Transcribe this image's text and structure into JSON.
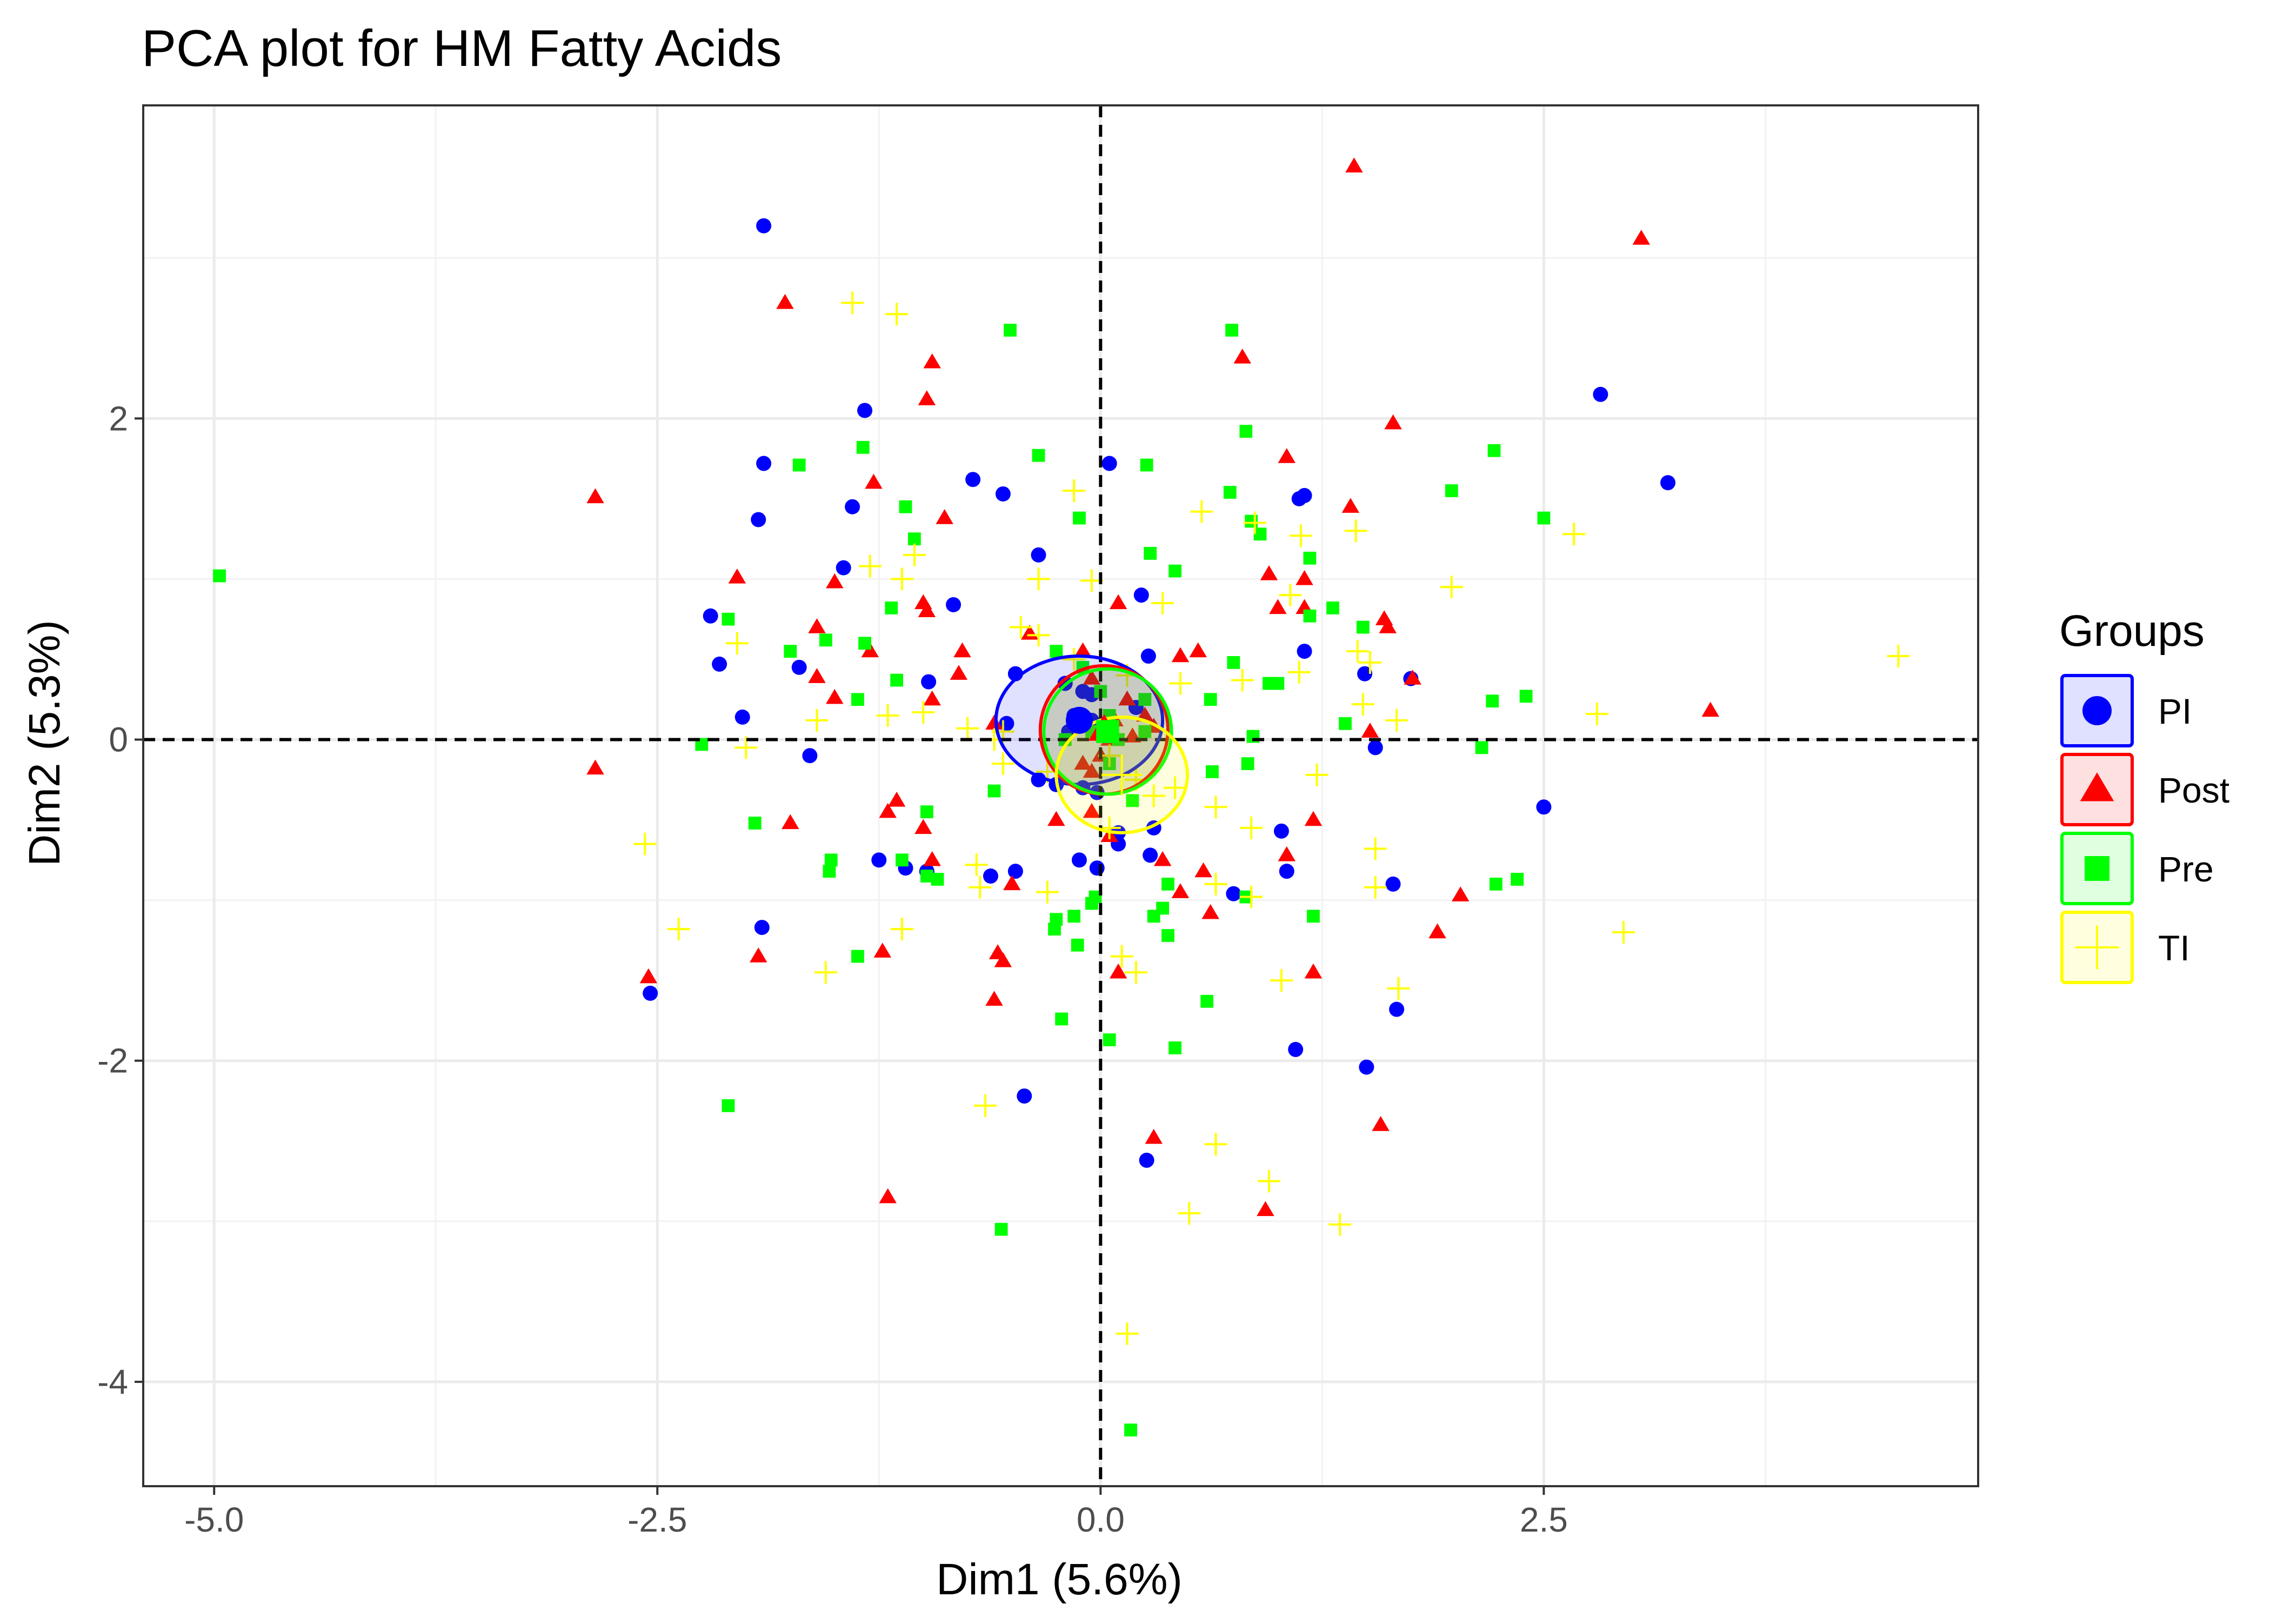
{
  "chart_data": {
    "type": "scatter",
    "title": "PCA plot for HM Fatty Acids",
    "xlabel": "Dim1 (5.6%)",
    "ylabel": "Dim2 (5.3%)",
    "xlim": [
      -5.4,
      4.95
    ],
    "ylim": [
      -4.65,
      3.95
    ],
    "x_ticks": [
      {
        "value": -5,
        "label": "-5.0"
      },
      {
        "value": -2.5,
        "label": "-2.5"
      },
      {
        "value": 0,
        "label": "0.0"
      },
      {
        "value": 2.5,
        "label": "2.5"
      }
    ],
    "y_ticks": [
      {
        "value": -4,
        "label": "-4"
      },
      {
        "value": -2,
        "label": "-2"
      },
      {
        "value": 0,
        "label": "0"
      },
      {
        "value": 2,
        "label": "2"
      }
    ],
    "grid": true,
    "reference_lines": {
      "x": 0,
      "y": 0,
      "style": "dashed"
    },
    "legend": {
      "title": "Groups",
      "position": "right"
    },
    "series": [
      {
        "name": "PI",
        "color": "#0000ff",
        "shape": "circle",
        "ellipse": {
          "cx": -0.12,
          "cy": 0.12,
          "rx": 0.47,
          "ry": 0.4
        },
        "points": [
          [
            -1.9,
            3.2
          ],
          [
            2.82,
            2.15
          ],
          [
            3.2,
            1.6
          ],
          [
            -1.33,
            2.05
          ],
          [
            -1.9,
            1.72
          ],
          [
            -0.72,
            1.62
          ],
          [
            -0.55,
            1.53
          ],
          [
            0.05,
            1.72
          ],
          [
            1.15,
            1.52
          ],
          [
            1.12,
            1.5
          ],
          [
            -1.93,
            1.37
          ],
          [
            -1.4,
            1.45
          ],
          [
            -1.45,
            1.07
          ],
          [
            -0.35,
            1.15
          ],
          [
            -0.83,
            0.84
          ],
          [
            0.23,
            0.9
          ],
          [
            -2.2,
            0.77
          ],
          [
            -2.15,
            0.47
          ],
          [
            -1.7,
            0.45
          ],
          [
            -0.97,
            0.36
          ],
          [
            1.15,
            0.55
          ],
          [
            1.49,
            0.41
          ],
          [
            1.75,
            0.38
          ],
          [
            0.27,
            0.52
          ],
          [
            -2.02,
            0.14
          ],
          [
            -0.53,
            0.1
          ],
          [
            -0.48,
            0.41
          ],
          [
            -0.2,
            0.35
          ],
          [
            -0.1,
            0.3
          ],
          [
            -0.05,
            0.28
          ],
          [
            -0.15,
            0.15
          ],
          [
            -0.12,
            0.1
          ],
          [
            -0.18,
            0.05
          ],
          [
            -0.05,
            0.12
          ],
          [
            0.2,
            0.2
          ],
          [
            -0.35,
            -0.25
          ],
          [
            -0.25,
            -0.28
          ],
          [
            -0.1,
            -0.3
          ],
          [
            -0.02,
            -0.33
          ],
          [
            0.1,
            -0.58
          ],
          [
            0.3,
            -0.55
          ],
          [
            0.1,
            -0.65
          ],
          [
            0.28,
            -0.72
          ],
          [
            -1.25,
            -0.75
          ],
          [
            -1.1,
            -0.8
          ],
          [
            -0.98,
            -0.82
          ],
          [
            -0.62,
            -0.85
          ],
          [
            -0.48,
            -0.82
          ],
          [
            0.75,
            -0.96
          ],
          [
            1.05,
            -0.82
          ],
          [
            1.55,
            -0.05
          ],
          [
            1.65,
            -0.9
          ],
          [
            2.5,
            -0.42
          ],
          [
            -0.12,
            -0.75
          ],
          [
            -1.64,
            -0.1
          ],
          [
            -1.91,
            -1.17
          ],
          [
            -2.54,
            -1.58
          ],
          [
            -0.43,
            -2.22
          ],
          [
            0.26,
            -2.62
          ],
          [
            1.1,
            -1.93
          ],
          [
            1.5,
            -2.04
          ],
          [
            1.67,
            -1.68
          ],
          [
            1.02,
            -0.57
          ],
          [
            -0.02,
            -0.8
          ]
        ]
      },
      {
        "name": "Post",
        "color": "#ff0000",
        "shape": "triangle",
        "ellipse": {
          "cx": 0.02,
          "cy": 0.06,
          "rx": 0.36,
          "ry": 0.4
        },
        "points": [
          [
            1.43,
            3.57
          ],
          [
            3.05,
            3.12
          ],
          [
            -1.78,
            2.72
          ],
          [
            0.8,
            2.38
          ],
          [
            -0.95,
            2.35
          ],
          [
            -0.98,
            2.12
          ],
          [
            1.65,
            1.97
          ],
          [
            -2.85,
            1.51
          ],
          [
            1.05,
            1.76
          ],
          [
            -1.28,
            1.6
          ],
          [
            1.41,
            1.45
          ],
          [
            -0.88,
            1.38
          ],
          [
            -2.05,
            1.01
          ],
          [
            -1.5,
            0.98
          ],
          [
            -1.0,
            0.85
          ],
          [
            -0.98,
            0.8
          ],
          [
            0.95,
            1.03
          ],
          [
            1.15,
            1.0
          ],
          [
            -0.4,
            0.66
          ],
          [
            -0.1,
            0.55
          ],
          [
            -0.78,
            0.55
          ],
          [
            0.1,
            0.85
          ],
          [
            0.45,
            0.52
          ],
          [
            0.55,
            0.55
          ],
          [
            1.0,
            0.82
          ],
          [
            1.15,
            0.82
          ],
          [
            1.6,
            0.75
          ],
          [
            1.62,
            0.7
          ],
          [
            1.76,
            0.38
          ],
          [
            -1.6,
            0.7
          ],
          [
            -1.3,
            0.55
          ],
          [
            -1.6,
            0.39
          ],
          [
            -1.5,
            0.26
          ],
          [
            0.08,
            0.12
          ],
          [
            -0.05,
            0.38
          ],
          [
            0.15,
            0.25
          ],
          [
            0.25,
            0.15
          ],
          [
            0.3,
            0.08
          ],
          [
            0.05,
            0.0
          ],
          [
            -0.1,
            -0.15
          ],
          [
            -0.05,
            -0.2
          ],
          [
            0.0,
            -0.1
          ],
          [
            0.18,
            0.02
          ],
          [
            -0.95,
            0.25
          ],
          [
            -0.8,
            0.41
          ],
          [
            -0.6,
            0.1
          ],
          [
            -2.85,
            -0.18
          ],
          [
            -1.75,
            -0.52
          ],
          [
            -1.2,
            -0.45
          ],
          [
            -1.15,
            -0.38
          ],
          [
            -1.0,
            -0.55
          ],
          [
            -0.25,
            -0.5
          ],
          [
            -0.05,
            -0.45
          ],
          [
            0.05,
            -0.6
          ],
          [
            0.35,
            -0.75
          ],
          [
            -0.95,
            -0.75
          ],
          [
            -0.5,
            -0.9
          ],
          [
            0.45,
            -0.95
          ],
          [
            0.58,
            -0.82
          ],
          [
            0.62,
            -1.08
          ],
          [
            1.05,
            -0.72
          ],
          [
            1.2,
            -0.5
          ],
          [
            1.52,
            0.05
          ],
          [
            1.9,
            -1.2
          ],
          [
            2.03,
            -0.97
          ],
          [
            3.44,
            0.18
          ],
          [
            -2.55,
            -1.48
          ],
          [
            -1.93,
            -1.35
          ],
          [
            -1.23,
            -1.32
          ],
          [
            -0.58,
            -1.33
          ],
          [
            -0.55,
            -1.38
          ],
          [
            -0.6,
            -1.62
          ],
          [
            0.1,
            -1.45
          ],
          [
            1.2,
            -1.45
          ],
          [
            1.58,
            -2.4
          ],
          [
            0.3,
            -2.48
          ],
          [
            0.93,
            -2.93
          ],
          [
            -1.2,
            -2.85
          ]
        ]
      },
      {
        "name": "Pre",
        "color": "#00ff00",
        "shape": "square",
        "ellipse": {
          "cx": 0.04,
          "cy": 0.05,
          "rx": 0.36,
          "ry": 0.39
        },
        "points": [
          [
            -4.97,
            1.02
          ],
          [
            -0.51,
            2.55
          ],
          [
            0.74,
            2.55
          ],
          [
            0.82,
            1.92
          ],
          [
            -1.34,
            1.82
          ],
          [
            -1.7,
            1.71
          ],
          [
            -0.35,
            1.77
          ],
          [
            0.26,
            1.71
          ],
          [
            2.22,
            1.8
          ],
          [
            -1.1,
            1.45
          ],
          [
            -0.12,
            1.38
          ],
          [
            0.73,
            1.54
          ],
          [
            0.85,
            1.36
          ],
          [
            0.9,
            1.28
          ],
          [
            1.18,
            1.13
          ],
          [
            1.98,
            1.55
          ],
          [
            2.5,
            1.38
          ],
          [
            -1.05,
            1.25
          ],
          [
            0.28,
            1.16
          ],
          [
            0.42,
            1.05
          ],
          [
            -1.18,
            0.82
          ],
          [
            -2.1,
            0.75
          ],
          [
            -1.75,
            0.55
          ],
          [
            -1.55,
            0.62
          ],
          [
            -1.33,
            0.6
          ],
          [
            -1.15,
            0.37
          ],
          [
            0.75,
            0.48
          ],
          [
            1.18,
            0.77
          ],
          [
            1.31,
            0.82
          ],
          [
            1.48,
            0.7
          ],
          [
            -0.25,
            0.55
          ],
          [
            -0.1,
            0.45
          ],
          [
            0.0,
            0.3
          ],
          [
            0.05,
            0.15
          ],
          [
            -0.05,
            0.05
          ],
          [
            0.1,
            0.0
          ],
          [
            0.25,
            0.05
          ],
          [
            -0.2,
            0.0
          ],
          [
            0.05,
            -0.15
          ],
          [
            0.18,
            -0.38
          ],
          [
            0.25,
            0.25
          ],
          [
            -1.37,
            0.25
          ],
          [
            0.62,
            0.25
          ],
          [
            0.95,
            0.35
          ],
          [
            1.0,
            0.35
          ],
          [
            1.38,
            0.1
          ],
          [
            2.21,
            0.24
          ],
          [
            2.4,
            0.27
          ],
          [
            0.86,
            0.02
          ],
          [
            0.83,
            -0.15
          ],
          [
            0.63,
            -0.2
          ],
          [
            -2.25,
            -0.03
          ],
          [
            2.15,
            -0.05
          ],
          [
            -0.6,
            -0.32
          ],
          [
            -0.92,
            -0.87
          ],
          [
            -1.95,
            -0.52
          ],
          [
            -1.52,
            -0.75
          ],
          [
            -1.53,
            -0.82
          ],
          [
            -1.12,
            -0.75
          ],
          [
            -0.98,
            -0.85
          ],
          [
            -0.98,
            -0.45
          ],
          [
            0.38,
            -0.9
          ],
          [
            0.82,
            -0.98
          ],
          [
            1.2,
            -1.1
          ],
          [
            2.23,
            -0.9
          ],
          [
            2.35,
            -0.87
          ],
          [
            -0.25,
            -1.12
          ],
          [
            -0.15,
            -1.1
          ],
          [
            -0.05,
            -1.02
          ],
          [
            -0.03,
            -0.98
          ],
          [
            0.35,
            -1.05
          ],
          [
            0.38,
            -1.22
          ],
          [
            0.3,
            -1.1
          ],
          [
            -0.26,
            -1.18
          ],
          [
            -0.13,
            -1.28
          ],
          [
            -1.37,
            -1.35
          ],
          [
            -0.22,
            -1.74
          ],
          [
            0.6,
            -1.63
          ],
          [
            0.05,
            -1.87
          ],
          [
            0.42,
            -1.92
          ],
          [
            -2.1,
            -2.28
          ],
          [
            -0.56,
            -3.05
          ],
          [
            0.17,
            -4.3
          ]
        ]
      },
      {
        "name": "TI",
        "color": "#ffff00",
        "shape": "cross",
        "ellipse": {
          "cx": 0.12,
          "cy": -0.22,
          "rx": 0.37,
          "ry": 0.36
        },
        "points": [
          [
            -1.4,
            2.72
          ],
          [
            -1.15,
            2.65
          ],
          [
            -0.15,
            1.55
          ],
          [
            0.57,
            1.42
          ],
          [
            0.87,
            1.35
          ],
          [
            1.13,
            1.27
          ],
          [
            1.44,
            1.3
          ],
          [
            2.67,
            1.28
          ],
          [
            -1.12,
            1.0
          ],
          [
            -0.35,
            1.0
          ],
          [
            -0.05,
            0.99
          ],
          [
            0.35,
            0.85
          ],
          [
            1.07,
            0.9
          ],
          [
            1.98,
            0.95
          ],
          [
            -1.3,
            1.08
          ],
          [
            -1.05,
            1.15
          ],
          [
            -2.05,
            0.6
          ],
          [
            -1.6,
            0.12
          ],
          [
            -1.2,
            0.15
          ],
          [
            -1.0,
            0.17
          ],
          [
            -0.75,
            0.07
          ],
          [
            -0.55,
            0.05
          ],
          [
            -0.45,
            0.7
          ],
          [
            -0.35,
            0.65
          ],
          [
            -0.15,
            0.5
          ],
          [
            0.15,
            0.4
          ],
          [
            0.45,
            0.35
          ],
          [
            0.8,
            0.37
          ],
          [
            1.12,
            0.42
          ],
          [
            1.45,
            0.55
          ],
          [
            1.52,
            0.48
          ],
          [
            1.48,
            0.22
          ],
          [
            1.67,
            0.12
          ],
          [
            2.8,
            0.16
          ],
          [
            4.5,
            0.52
          ],
          [
            -2.0,
            -0.05
          ],
          [
            -0.6,
            0.0
          ],
          [
            -0.55,
            -0.15
          ],
          [
            -0.3,
            -0.2
          ],
          [
            0.05,
            -0.1
          ],
          [
            0.2,
            -0.25
          ],
          [
            0.3,
            -0.35
          ],
          [
            0.42,
            -0.3
          ],
          [
            0.65,
            -0.42
          ],
          [
            0.85,
            -0.55
          ],
          [
            1.22,
            -0.22
          ],
          [
            1.55,
            -0.68
          ],
          [
            0.05,
            -0.55
          ],
          [
            -2.57,
            -0.65
          ],
          [
            -2.38,
            -1.18
          ],
          [
            -1.55,
            -1.45
          ],
          [
            -1.12,
            -1.18
          ],
          [
            -0.7,
            -0.78
          ],
          [
            -0.68,
            -0.92
          ],
          [
            -0.3,
            -0.95
          ],
          [
            0.12,
            -1.35
          ],
          [
            0.2,
            -1.45
          ],
          [
            0.65,
            -0.9
          ],
          [
            0.85,
            -0.98
          ],
          [
            1.02,
            -1.5
          ],
          [
            1.55,
            -0.92
          ],
          [
            1.68,
            -1.55
          ],
          [
            2.95,
            -1.2
          ],
          [
            -0.65,
            -2.28
          ],
          [
            0.65,
            -2.52
          ],
          [
            0.95,
            -2.75
          ],
          [
            0.5,
            -2.95
          ],
          [
            1.35,
            -3.02
          ],
          [
            0.15,
            -3.7
          ]
        ]
      }
    ]
  }
}
